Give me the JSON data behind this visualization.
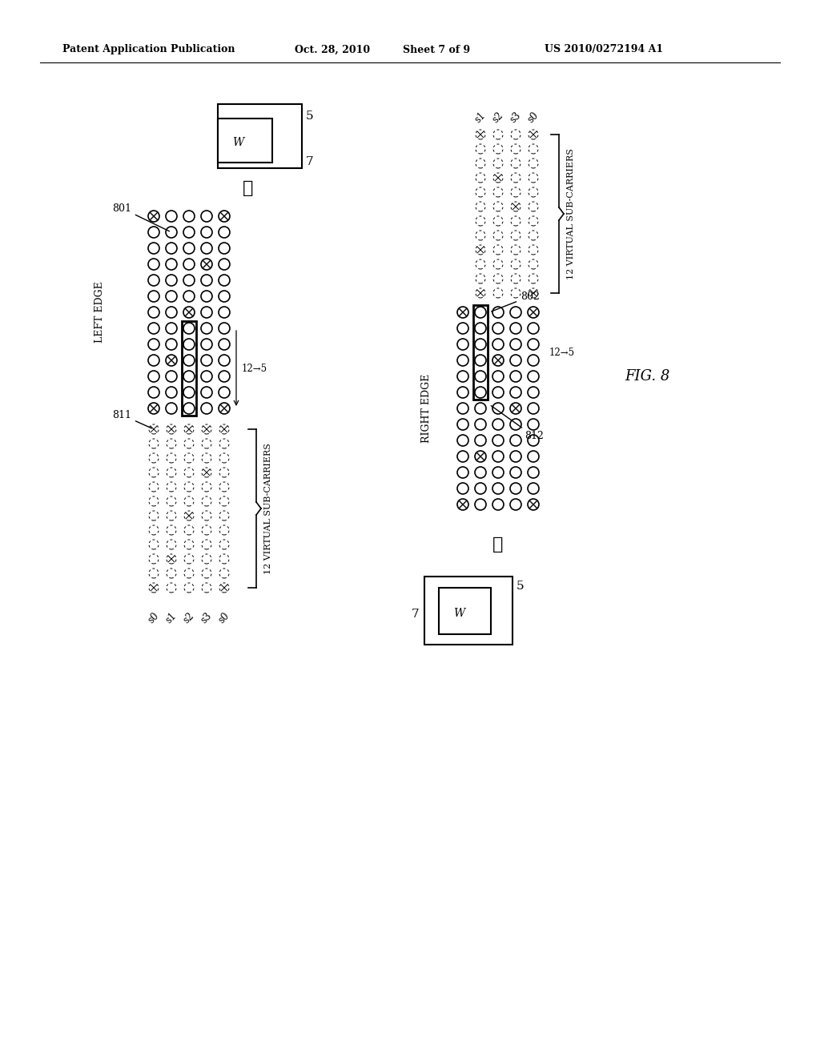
{
  "bg_color": "#ffffff",
  "header_text": "Patent Application Publication",
  "header_date": "Oct. 28, 2010",
  "header_sheet": "Sheet 7 of 9",
  "header_patent": "US 2010/0272194 A1",
  "fig_label": "FIG. 8"
}
